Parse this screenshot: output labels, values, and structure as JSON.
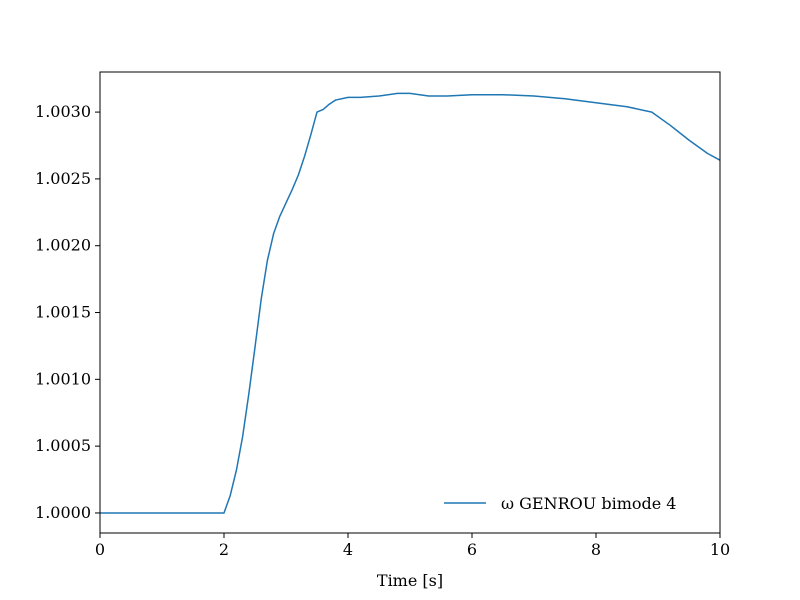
{
  "chart_data": {
    "type": "line",
    "title": "",
    "xlabel": "Time [s]",
    "ylabel": "",
    "xlim": [
      0,
      10
    ],
    "ylim": [
      0.99985,
      1.0033
    ],
    "grid": false,
    "legend_position": "bottom-right",
    "x_ticks": [
      0,
      2,
      4,
      6,
      8,
      10
    ],
    "x_tick_labels": [
      "0",
      "2",
      "4",
      "6",
      "8",
      "10"
    ],
    "y_ticks": [
      1.0,
      1.0005,
      1.001,
      1.0015,
      1.002,
      1.0025,
      1.003
    ],
    "y_tick_labels": [
      "1.0000",
      "1.0005",
      "1.0010",
      "1.0015",
      "1.0020",
      "1.0025",
      "1.0030"
    ],
    "series": [
      {
        "name": "ω GENROU bimode 4",
        "color": "#1f77b4",
        "x": [
          0,
          1.0,
          2.0,
          2.1,
          2.2,
          2.3,
          2.4,
          2.5,
          2.6,
          2.7,
          2.8,
          2.9,
          3.0,
          3.1,
          3.2,
          3.3,
          3.4,
          3.5,
          3.6,
          3.7,
          3.8,
          4.0,
          4.2,
          4.5,
          4.8,
          5.0,
          5.3,
          5.6,
          6.0,
          6.5,
          7.0,
          7.5,
          8.0,
          8.5,
          8.9,
          9.2,
          9.5,
          9.8,
          10.0
        ],
        "y": [
          1.0,
          1.0,
          1.0,
          1.00013,
          1.00032,
          1.00057,
          1.00089,
          1.00124,
          1.0016,
          1.00189,
          1.00209,
          1.00222,
          1.00232,
          1.00242,
          1.00253,
          1.00267,
          1.00283,
          1.003,
          1.00302,
          1.00306,
          1.00309,
          1.00311,
          1.00311,
          1.00312,
          1.00314,
          1.00314,
          1.00312,
          1.00312,
          1.00313,
          1.00313,
          1.00312,
          1.0031,
          1.00307,
          1.00304,
          1.003,
          1.0029,
          1.00279,
          1.00269,
          1.00264
        ]
      }
    ]
  }
}
